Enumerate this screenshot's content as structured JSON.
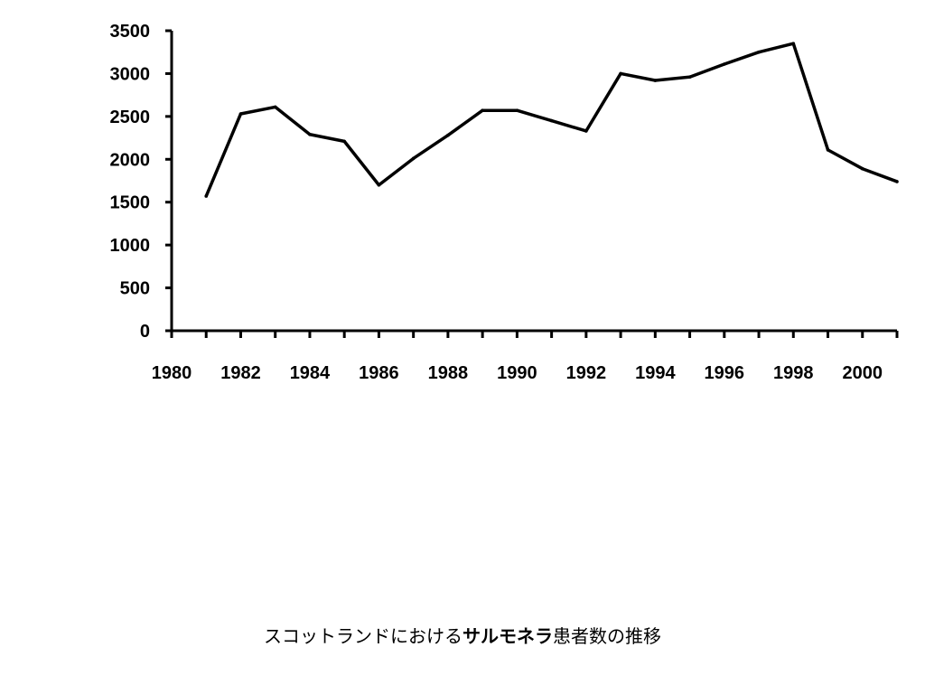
{
  "chart_data": {
    "type": "line",
    "x": [
      1981,
      1982,
      1983,
      1984,
      1985,
      1986,
      1987,
      1988,
      1989,
      1990,
      1991,
      1992,
      1993,
      1994,
      1995,
      1996,
      1997,
      1998,
      1999,
      2000,
      2001
    ],
    "series": [
      {
        "values": [
          1570,
          2530,
          2610,
          2290,
          2210,
          1700,
          2010,
          2280,
          2570,
          2570,
          2450,
          2330,
          3000,
          2920,
          2960,
          3110,
          3250,
          3350,
          2110,
          1890,
          1740
        ],
        "color": "#000000"
      }
    ],
    "xlim": [
      1980,
      2001
    ],
    "ylim": [
      0,
      3500
    ],
    "x_tick_labels": [
      "1980",
      "1982",
      "1984",
      "1986",
      "1988",
      "1990",
      "1992",
      "1994",
      "1996",
      "1998",
      "2000"
    ],
    "y_tick_labels": [
      "0",
      "500",
      "1000",
      "1500",
      "2000",
      "2500",
      "3000",
      "3500"
    ],
    "grid": false,
    "title": "",
    "xlabel": "",
    "ylabel": ""
  },
  "caption": {
    "prefix": "スコットランドにおける",
    "bold": "サルモネラ",
    "suffix": "患者数の推移"
  }
}
